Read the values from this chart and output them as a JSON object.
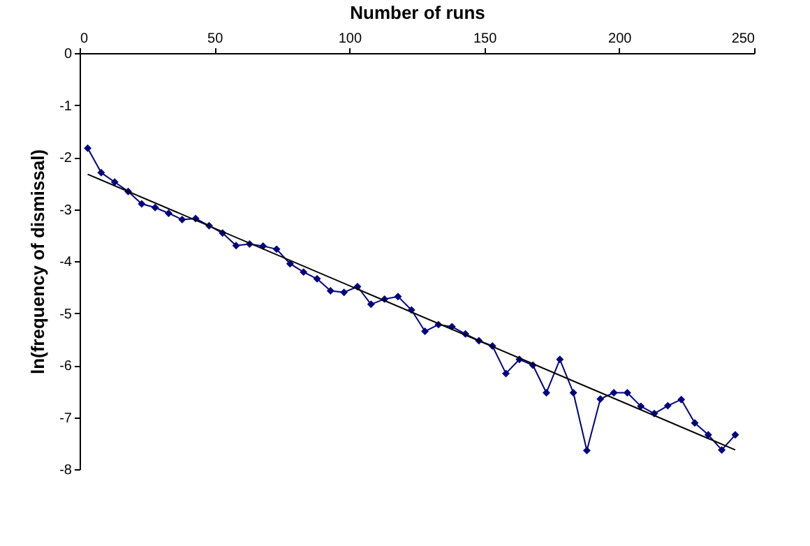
{
  "chart_data": {
    "type": "line",
    "xlabel": "Number of runs",
    "ylabel": "ln(frequency of dismissal)",
    "xlim": [
      0,
      250
    ],
    "xticks": [
      0,
      50,
      100,
      150,
      200,
      250
    ],
    "ylim": [
      -8,
      0
    ],
    "yticks": [
      0,
      -1,
      -2,
      -3,
      -4,
      -5,
      -6,
      -7,
      -8
    ],
    "grid": false,
    "x": [
      3,
      8,
      13,
      18,
      23,
      28,
      33,
      38,
      43,
      48,
      53,
      58,
      63,
      68,
      73,
      78,
      83,
      88,
      93,
      98,
      103,
      108,
      113,
      118,
      123,
      128,
      133,
      138,
      143,
      148,
      153,
      158,
      163,
      168,
      173,
      178,
      183,
      188,
      193,
      198,
      203,
      208,
      213,
      218,
      223,
      228,
      233,
      238,
      243
    ],
    "series": [
      {
        "color": "#000080",
        "marker": "diamond",
        "line_style": "solid",
        "values": [
          -1.83,
          -2.3,
          -2.48,
          -2.66,
          -2.9,
          -2.97,
          -3.08,
          -3.2,
          -3.18,
          -3.32,
          -3.46,
          -3.7,
          -3.67,
          -3.71,
          -3.77,
          -4.05,
          -4.21,
          -4.34,
          -4.57,
          -4.6,
          -4.49,
          -4.83,
          -4.73,
          -4.68,
          -4.94,
          -5.35,
          -5.22,
          -5.26,
          -5.4,
          -5.53,
          -5.63,
          -6.16,
          -5.89,
          -6.0,
          -6.53,
          -5.89,
          -6.53,
          -7.64,
          -6.65,
          -6.53,
          -6.53,
          -6.79,
          -6.93,
          -6.78,
          -6.66,
          -7.11,
          -7.34,
          -7.63,
          -7.34
        ]
      },
      {
        "type": "line",
        "color": "#000000",
        "marker": "none",
        "line_style": "solid",
        "x": [
          3,
          243
        ],
        "values": [
          -2.33,
          -7.63
        ]
      }
    ]
  }
}
